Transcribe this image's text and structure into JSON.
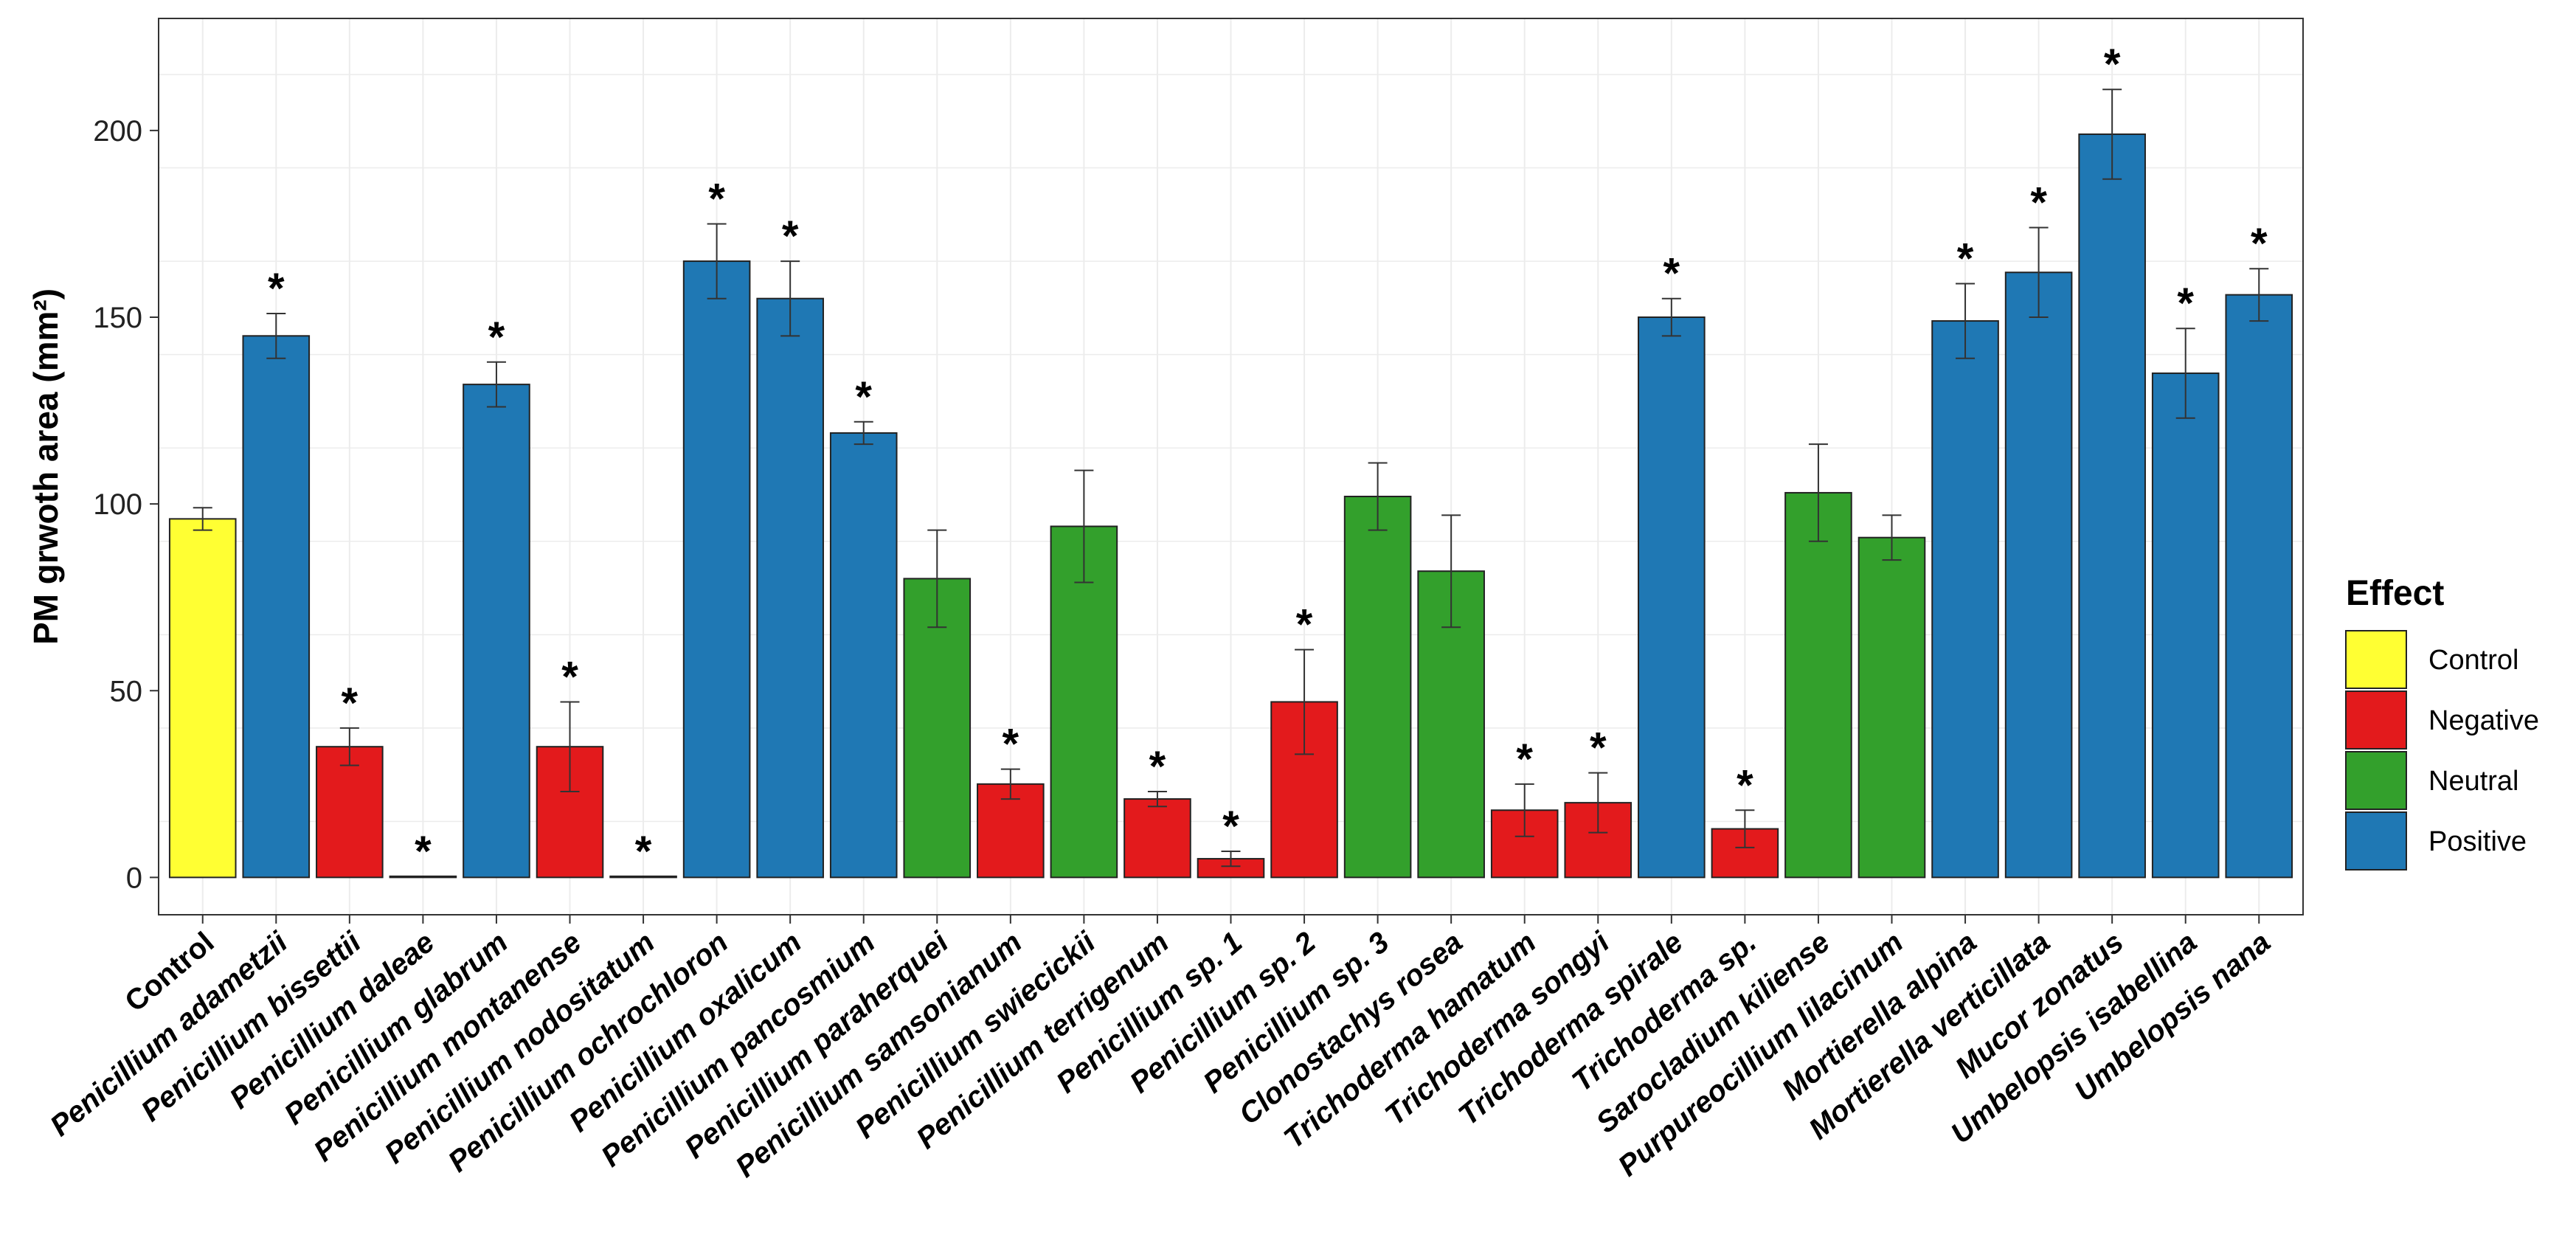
{
  "chart_data": {
    "type": "bar",
    "title": "",
    "xlabel": "",
    "ylabel": "PM grwoth area (mm²)",
    "ylim": [
      -10,
      230
    ],
    "yticks": [
      0,
      50,
      100,
      150,
      200
    ],
    "grid": true,
    "legend": {
      "title": "Effect",
      "placement": "right",
      "entries": [
        {
          "label": "Control",
          "color": "#ffff33"
        },
        {
          "label": "Negative",
          "color": "#e31a1c"
        },
        {
          "label": "Neutral",
          "color": "#33a02c"
        },
        {
          "label": "Positive",
          "color": "#1f78b4"
        }
      ]
    },
    "significance_marker": "*",
    "bars": [
      {
        "category": "Control",
        "value": 96,
        "error": 3,
        "effect": "Control",
        "significant": false
      },
      {
        "category": "Penicillium adametzii",
        "value": 145,
        "error": 6,
        "effect": "Positive",
        "significant": true
      },
      {
        "category": "Penicillium bissettii",
        "value": 35,
        "error": 5,
        "effect": "Negative",
        "significant": true
      },
      {
        "category": "Penicillium daleae",
        "value": 0.3,
        "error": 0,
        "effect": "Negative",
        "significant": true
      },
      {
        "category": "Penicillium glabrum",
        "value": 132,
        "error": 6,
        "effect": "Positive",
        "significant": true
      },
      {
        "category": "Penicillium montanense",
        "value": 35,
        "error": 12,
        "effect": "Negative",
        "significant": true
      },
      {
        "category": "Penicillium nodositatum",
        "value": 0.3,
        "error": 0,
        "effect": "Negative",
        "significant": true
      },
      {
        "category": "Penicillium ochrochloron",
        "value": 165,
        "error": 10,
        "effect": "Positive",
        "significant": true
      },
      {
        "category": "Penicillium oxalicum",
        "value": 155,
        "error": 10,
        "effect": "Positive",
        "significant": true
      },
      {
        "category": "Penicillium pancosmium",
        "value": 119,
        "error": 3,
        "effect": "Positive",
        "significant": true
      },
      {
        "category": "Penicillium paraherquei",
        "value": 80,
        "error": 13,
        "effect": "Neutral",
        "significant": false
      },
      {
        "category": "Penicillium samsonianum",
        "value": 25,
        "error": 4,
        "effect": "Negative",
        "significant": true
      },
      {
        "category": "Penicillium swiecickii",
        "value": 94,
        "error": 15,
        "effect": "Neutral",
        "significant": false
      },
      {
        "category": "Penicillium terrigenum",
        "value": 21,
        "error": 2,
        "effect": "Negative",
        "significant": true
      },
      {
        "category": "Penicillium sp. 1",
        "value": 5,
        "error": 2,
        "effect": "Negative",
        "significant": true
      },
      {
        "category": "Penicillium sp. 2",
        "value": 47,
        "error": 14,
        "effect": "Negative",
        "significant": true
      },
      {
        "category": "Penicillium sp. 3",
        "value": 102,
        "error": 9,
        "effect": "Neutral",
        "significant": false
      },
      {
        "category": "Clonostachys rosea",
        "value": 82,
        "error": 15,
        "effect": "Neutral",
        "significant": false
      },
      {
        "category": "Trichoderma hamatum",
        "value": 18,
        "error": 7,
        "effect": "Negative",
        "significant": true
      },
      {
        "category": "Trichoderma songyi",
        "value": 20,
        "error": 8,
        "effect": "Negative",
        "significant": true
      },
      {
        "category": "Trichoderma spirale",
        "value": 150,
        "error": 5,
        "effect": "Positive",
        "significant": true
      },
      {
        "category": "Trichoderma sp.",
        "value": 13,
        "error": 5,
        "effect": "Negative",
        "significant": true
      },
      {
        "category": "Sarocladium kiliense",
        "value": 103,
        "error": 13,
        "effect": "Neutral",
        "significant": false
      },
      {
        "category": "Purpureocillium lilacinum",
        "value": 91,
        "error": 6,
        "effect": "Neutral",
        "significant": false
      },
      {
        "category": "Mortierella alpina",
        "value": 149,
        "error": 10,
        "effect": "Positive",
        "significant": true
      },
      {
        "category": "Mortierella verticillata",
        "value": 162,
        "error": 12,
        "effect": "Positive",
        "significant": true
      },
      {
        "category": "Mucor zonatus",
        "value": 199,
        "error": 12,
        "effect": "Positive",
        "significant": true
      },
      {
        "category": "Umbelopsis isabellina",
        "value": 135,
        "error": 12,
        "effect": "Positive",
        "significant": true
      },
      {
        "category": "Umbelopsis nana",
        "value": 156,
        "error": 7,
        "effect": "Positive",
        "significant": true
      }
    ]
  }
}
